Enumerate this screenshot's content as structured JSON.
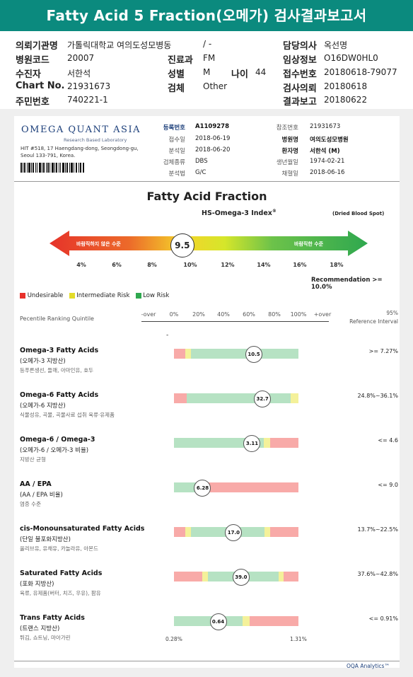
{
  "title": "Fatty Acid 5 Fraction(오메가) 검사결과보고서",
  "header": {
    "institution_label": "의뢰기관명",
    "institution_value": "가톨릭대학교 여의도성모병동",
    "slash_value": "/ -",
    "doctor_label": "담당의사",
    "doctor_value": "옥선명",
    "hospital_code_label": "병원코드",
    "hospital_code_value": "20007",
    "dept_label": "진료과",
    "dept_value": "FM",
    "clinical_label": "임상정보",
    "clinical_value": "O16DW0HL0",
    "patient_label": "수진자",
    "patient_value": "서한석",
    "sex_label": "성별",
    "sex_value": "M",
    "age_label": "나이",
    "age_value": "44",
    "receipt_label": "접수번호",
    "receipt_value": "20180618-79077",
    "chart_label": "Chart No.",
    "chart_value": "21931673",
    "test_label": "검체",
    "test_value": "Other",
    "request_label": "검사의뢰",
    "request_value": "20180618",
    "id_label": "주민번호",
    "id_value": "740221-1",
    "result_label": "결과보고",
    "result_value": "20180622"
  },
  "lab": {
    "name": "OMEGA QUANT ASIA",
    "tagline": "Research Based Laboratory",
    "address1": "HIT #518, 17 Haengdang-dong, Seongdong-gu,",
    "address2": "Seoul 133-791, Korea."
  },
  "meta": {
    "reg_no_label": "등록번호",
    "reg_no_value": "A1109278",
    "ref_no_label": "참조번호",
    "ref_no_value": "21931673",
    "received_label": "접수일",
    "received_value": "2018-06-19",
    "hospital_label": "병원명",
    "hospital_value": "여의도성모병원",
    "analyzed_label": "분석일",
    "analyzed_value": "2018-06-20",
    "patient_label": "환자명",
    "patient_value": "서한석 (M)",
    "specimen_label": "검체종류",
    "specimen_value": "DBS",
    "dob_label": "생년월일",
    "dob_value": "1974-02-21",
    "method_label": "분석법",
    "method_value": "G/C",
    "collected_label": "채혈일",
    "collected_value": "2018-06-16"
  },
  "fraction": {
    "heading": "Fatty Acid Fraction",
    "index_label": "HS-Omega-3 Index",
    "index_reg": "®",
    "dbs_note": "(Dried Blood Spot)",
    "undesirable_text": "바람직하지 않은 수준",
    "desirable_text": "바람직한 수준",
    "value": "9.5",
    "value_num": 9.5,
    "scale": [
      "4%",
      "6%",
      "8%",
      "10%",
      "12%",
      "14%",
      "16%",
      "18%"
    ],
    "recommendation": "Recommendation  >= 10.0%"
  },
  "legend": {
    "undesirable": "Undesirable",
    "intermediate": "Intermediate Risk",
    "low": "Low Risk",
    "colors": {
      "undesirable": "#e8312b",
      "intermediate": "#e3dc2a",
      "low": "#2fa84f"
    }
  },
  "ranking": {
    "label": "Pecentile Ranking Quintile",
    "ticks": [
      "-over",
      "0%",
      "20%",
      "40%",
      "60%",
      "80%",
      "100%",
      "+over"
    ],
    "ref_header1": "95%",
    "ref_header2": "Reference Interval",
    "dash": "-"
  },
  "rows": [
    {
      "title": "Omega-3 Fatty Acids",
      "sub": "(오메가-3 지방산)",
      "desc": "등푸른생선, 들깨, 아마인유, 호두",
      "value": "10.5",
      "value_num": 10.5,
      "ref": ">= 7.27%"
    },
    {
      "title": "Omega-6 Fatty Acids",
      "sub": "(오메가-6 지방산)",
      "desc": "식물성유, 곡물, 곡물사료 섭취 육류·유제품",
      "value": "32.7",
      "value_num": 32.7,
      "ref": "24.8%~36.1%"
    },
    {
      "title": "Omega-6 / Omega-3",
      "sub": "(오메가-6 / 오메가-3 비율)",
      "desc": "지방산 균형",
      "value": "3.11",
      "value_num": 3.11,
      "ref": "<= 4.6"
    },
    {
      "title": "AA / EPA",
      "sub": "(AA / EPA 비율)",
      "desc": "염증 수준",
      "value": "6.28",
      "value_num": 6.28,
      "ref": "<= 9.0"
    },
    {
      "title": "cis-Monounsaturated Fatty Acids",
      "sub": "(단일 불포화지방산)",
      "desc": "올리브유, 유채유, 카놀라유, 아몬드",
      "value": "17.0",
      "value_num": 17.0,
      "ref": "13.7%~22.5%"
    },
    {
      "title": "Saturated Fatty Acids",
      "sub": "(포화 지방산)",
      "desc": "육류, 유제품(버터, 치즈, 우유), 팜유",
      "value": "39.0",
      "value_num": 39.0,
      "ref": "37.6%~42.8%"
    },
    {
      "title": "Trans Fatty Acids",
      "sub": "(트랜스 지방산)",
      "desc": "튀김, 쇼트닝, 마아가린",
      "value": "0.64",
      "value_num": 0.64,
      "ref": "<= 0.91%"
    }
  ],
  "trans_axis": {
    "min": "0.28%",
    "max": "1.31%"
  },
  "footer": "OQA Analytics™"
}
